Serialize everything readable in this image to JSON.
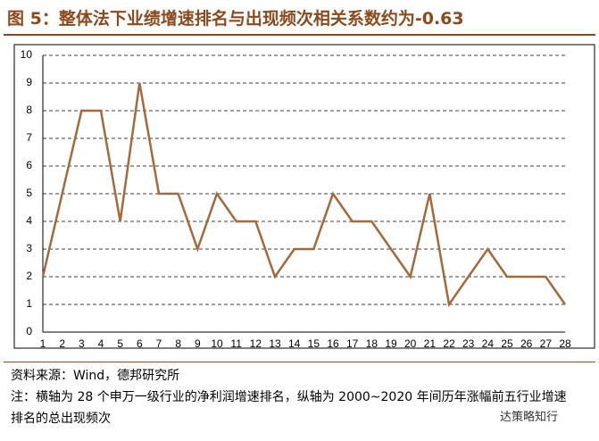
{
  "chart_data": {
    "type": "line",
    "title": "图 5：整体法下业绩增速排名与出现频次相关系数约为-0.63",
    "categories": [
      "1",
      "2",
      "3",
      "4",
      "5",
      "6",
      "7",
      "8",
      "9",
      "10",
      "11",
      "12",
      "13",
      "14",
      "15",
      "16",
      "17",
      "18",
      "19",
      "20",
      "21",
      "22",
      "23",
      "24",
      "25",
      "26",
      "27",
      "28"
    ],
    "values": [
      2,
      5,
      8,
      8,
      4,
      9,
      5,
      5,
      3,
      5,
      4,
      4,
      2,
      3,
      3,
      5,
      4,
      4,
      3,
      2,
      5,
      1,
      2,
      3,
      2,
      2,
      2,
      1
    ],
    "color": "#a5693a",
    "ylim": [
      0,
      10
    ],
    "yticks": [
      0,
      1,
      2,
      3,
      4,
      5,
      6,
      7,
      8,
      9,
      10
    ],
    "grid": true,
    "source": "资料来源：Wind，德邦研究所",
    "note": "注：横轴为 28 个申万一级行业的净利润增速排名，纵轴为 2000~2020 年间历年涨幅前五行业增速排名的总出现频次",
    "brand": "达策略知行"
  }
}
